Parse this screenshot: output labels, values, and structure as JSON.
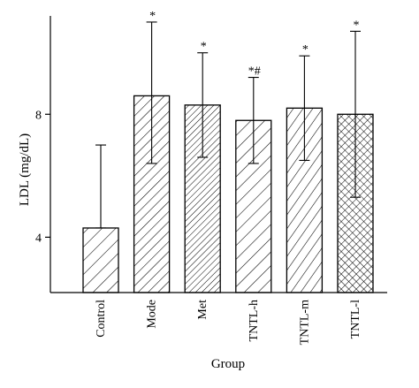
{
  "chart_data": {
    "type": "bar",
    "xlabel": "Group",
    "ylabel": "LDL (mg/dL)",
    "ylim": [
      2.2,
      11.2
    ],
    "yticks": [
      4,
      8
    ],
    "grid": false,
    "categories": [
      "Control",
      "Mode",
      "Met",
      "TNTL-h",
      "TNTL-m",
      "TNTL-l"
    ],
    "values": [
      4.3,
      8.6,
      8.3,
      7.8,
      8.2,
      8.0
    ],
    "error_upper": [
      7.0,
      11.0,
      10.0,
      9.2,
      9.9,
      10.7
    ],
    "error_lower": [
      4.3,
      6.4,
      6.6,
      6.4,
      6.5,
      5.3
    ],
    "annotations": [
      "",
      "*",
      "*",
      "*#",
      "*",
      "*"
    ],
    "patterns": [
      "diag-sparse",
      "diag-dense",
      "diag-tight",
      "diag-sparse",
      "diag-mixed",
      "crosshatch"
    ]
  }
}
